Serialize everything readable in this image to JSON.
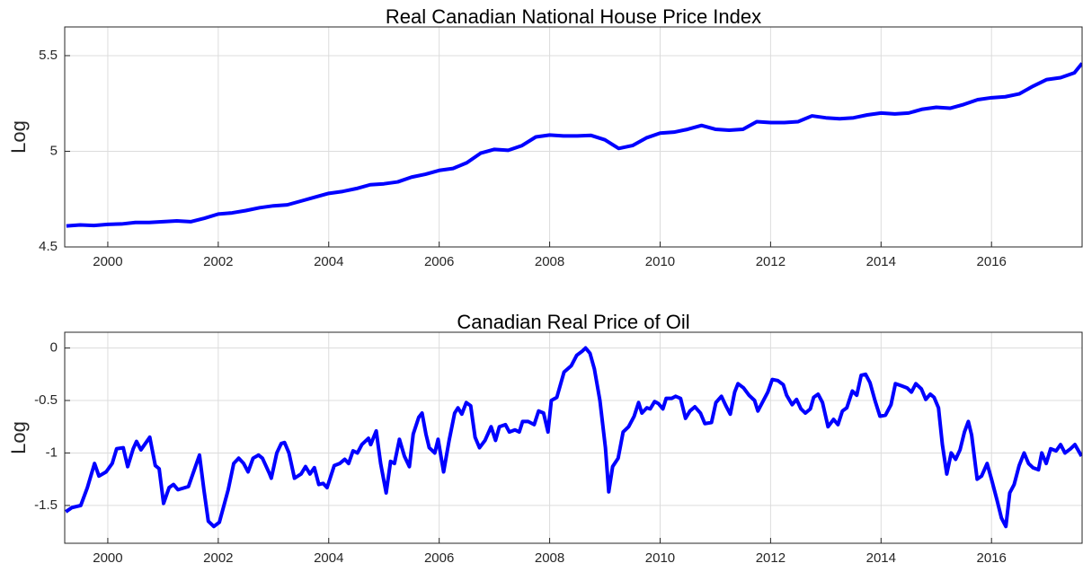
{
  "chart_data": [
    {
      "type": "line",
      "title": "Real Canadian National House Price Index",
      "ylabel": "Log",
      "color": "#0000ff",
      "grid": true,
      "xlim": [
        1999.22,
        2017.64
      ],
      "xticks": [
        2000,
        2002,
        2004,
        2006,
        2008,
        2010,
        2012,
        2014,
        2016
      ],
      "ylim": [
        4.5,
        5.65
      ],
      "yticks": [
        4.5,
        5,
        5.5
      ],
      "x": [
        1999.25,
        1999.5,
        1999.75,
        2000,
        2000.25,
        2000.5,
        2000.75,
        2001,
        2001.25,
        2001.5,
        2001.75,
        2002,
        2002.25,
        2002.5,
        2002.75,
        2003,
        2003.25,
        2003.5,
        2003.75,
        2004,
        2004.25,
        2004.5,
        2004.75,
        2005,
        2005.25,
        2005.5,
        2005.75,
        2006,
        2006.25,
        2006.5,
        2006.75,
        2007,
        2007.25,
        2007.5,
        2007.75,
        2008,
        2008.25,
        2008.5,
        2008.75,
        2009,
        2009.25,
        2009.5,
        2009.75,
        2010,
        2010.25,
        2010.5,
        2010.75,
        2011,
        2011.25,
        2011.5,
        2011.75,
        2012,
        2012.25,
        2012.5,
        2012.75,
        2013,
        2013.25,
        2013.5,
        2013.75,
        2014,
        2014.25,
        2014.5,
        2014.75,
        2015,
        2015.25,
        2015.5,
        2015.75,
        2016,
        2016.25,
        2016.5,
        2016.75,
        2017,
        2017.25,
        2017.5,
        2017.64
      ],
      "values": [
        4.61,
        4.615,
        4.612,
        4.618,
        4.62,
        4.628,
        4.628,
        4.632,
        4.636,
        4.632,
        4.65,
        4.672,
        4.678,
        4.69,
        4.705,
        4.715,
        4.72,
        4.74,
        4.76,
        4.78,
        4.79,
        4.805,
        4.825,
        4.83,
        4.84,
        4.865,
        4.88,
        4.9,
        4.91,
        4.94,
        4.99,
        5.01,
        5.005,
        5.03,
        5.075,
        5.085,
        5.08,
        5.08,
        5.083,
        5.06,
        5.015,
        5.03,
        5.07,
        5.095,
        5.1,
        5.115,
        5.135,
        5.115,
        5.11,
        5.115,
        5.155,
        5.15,
        5.15,
        5.155,
        5.185,
        5.175,
        5.17,
        5.175,
        5.19,
        5.2,
        5.195,
        5.2,
        5.22,
        5.23,
        5.225,
        5.245,
        5.27,
        5.28,
        5.285,
        5.3,
        5.34,
        5.375,
        5.385,
        5.41,
        5.46
      ]
    },
    {
      "type": "line",
      "title": "Canadian Real Price of Oil",
      "ylabel": "Log",
      "color": "#0000ff",
      "grid": true,
      "xlim": [
        1999.22,
        2017.64
      ],
      "xticks": [
        2000,
        2002,
        2004,
        2006,
        2008,
        2010,
        2012,
        2014,
        2016
      ],
      "ylim": [
        -1.86,
        0.15
      ],
      "yticks": [
        -1.5,
        -1,
        -0.5,
        0
      ],
      "x": [
        1999.24,
        1999.35,
        1999.51,
        1999.63,
        1999.76,
        1999.84,
        1999.97,
        2000.08,
        2000.16,
        2000.28,
        2000.36,
        2000.46,
        2000.52,
        2000.6,
        2000.76,
        2000.86,
        2000.93,
        2001.01,
        2001.11,
        2001.19,
        2001.27,
        2001.46,
        2001.54,
        2001.66,
        2001.74,
        2001.82,
        2001.92,
        2002.02,
        2002.18,
        2002.28,
        2002.37,
        2002.46,
        2002.54,
        2002.63,
        2002.73,
        2002.8,
        2002.93,
        2002.96,
        2003.06,
        2003.14,
        2003.2,
        2003.28,
        2003.38,
        2003.5,
        2003.58,
        2003.66,
        2003.74,
        2003.82,
        2003.9,
        2003.97,
        2004.1,
        2004.2,
        2004.29,
        2004.36,
        2004.44,
        2004.52,
        2004.6,
        2004.72,
        2004.76,
        2004.86,
        2004.94,
        2005.04,
        2005.12,
        2005.19,
        2005.28,
        2005.37,
        2005.46,
        2005.53,
        2005.63,
        2005.69,
        2005.76,
        2005.82,
        2005.92,
        2005.98,
        2006.08,
        2006.18,
        2006.28,
        2006.34,
        2006.41,
        2006.49,
        2006.57,
        2006.65,
        2006.73,
        2006.83,
        2006.94,
        2007.02,
        2007.09,
        2007.2,
        2007.27,
        2007.37,
        2007.45,
        2007.51,
        2007.61,
        2007.72,
        2007.8,
        2007.89,
        2007.97,
        2008.03,
        2008.13,
        2008.26,
        2008.39,
        2008.49,
        2008.59,
        2008.65,
        2008.73,
        2008.81,
        2008.91,
        2009.01,
        2009.07,
        2009.14,
        2009.24,
        2009.33,
        2009.43,
        2009.53,
        2009.61,
        2009.67,
        2009.76,
        2009.82,
        2009.9,
        2009.97,
        2010.05,
        2010.11,
        2010.21,
        2010.28,
        2010.37,
        2010.46,
        2010.54,
        2010.63,
        2010.73,
        2010.81,
        2010.93,
        2011.01,
        2011.11,
        2011.19,
        2011.27,
        2011.35,
        2011.41,
        2011.51,
        2011.61,
        2011.71,
        2011.77,
        2011.87,
        2011.95,
        2012.03,
        2012.13,
        2012.23,
        2012.29,
        2012.39,
        2012.47,
        2012.55,
        2012.63,
        2012.72,
        2012.78,
        2012.86,
        2012.94,
        2013.04,
        2013.14,
        2013.22,
        2013.3,
        2013.38,
        2013.48,
        2013.56,
        2013.64,
        2013.72,
        2013.8,
        2013.89,
        2013.98,
        2014.08,
        2014.18,
        2014.26,
        2014.37,
        2014.47,
        2014.55,
        2014.63,
        2014.73,
        2014.81,
        2014.89,
        2014.96,
        2015.04,
        2015.11,
        2015.19,
        2015.27,
        2015.35,
        2015.43,
        2015.51,
        2015.58,
        2015.64,
        2015.74,
        2015.82,
        2015.92,
        2016,
        2016.1,
        2016.18,
        2016.26,
        2016.33,
        2016.41,
        2016.5,
        2016.59,
        2016.67,
        2016.75,
        2016.85,
        2016.91,
        2016.99,
        2017.07,
        2017.17,
        2017.25,
        2017.33,
        2017.43,
        2017.51,
        2017.63
      ],
      "values": [
        -1.56,
        -1.52,
        -1.5,
        -1.33,
        -1.1,
        -1.22,
        -1.18,
        -1.1,
        -0.96,
        -0.95,
        -1.13,
        -0.96,
        -0.89,
        -0.97,
        -0.85,
        -1.12,
        -1.15,
        -1.48,
        -1.33,
        -1.3,
        -1.35,
        -1.32,
        -1.2,
        -1.02,
        -1.35,
        -1.65,
        -1.7,
        -1.66,
        -1.35,
        -1.1,
        -1.05,
        -1.1,
        -1.18,
        -1.05,
        -1.02,
        -1.05,
        -1.2,
        -1.24,
        -1.0,
        -0.91,
        -0.9,
        -1.0,
        -1.24,
        -1.2,
        -1.13,
        -1.2,
        -1.14,
        -1.3,
        -1.29,
        -1.33,
        -1.12,
        -1.1,
        -1.06,
        -1.1,
        -0.98,
        -1.0,
        -0.92,
        -0.86,
        -0.92,
        -0.79,
        -1.1,
        -1.38,
        -1.08,
        -1.1,
        -0.87,
        -1.03,
        -1.13,
        -0.82,
        -0.66,
        -0.62,
        -0.82,
        -0.95,
        -1.0,
        -0.87,
        -1.18,
        -0.88,
        -0.62,
        -0.57,
        -0.63,
        -0.52,
        -0.55,
        -0.85,
        -0.95,
        -0.88,
        -0.75,
        -0.88,
        -0.75,
        -0.73,
        -0.8,
        -0.78,
        -0.8,
        -0.7,
        -0.7,
        -0.73,
        -0.6,
        -0.62,
        -0.8,
        -0.5,
        -0.47,
        -0.23,
        -0.17,
        -0.07,
        -0.03,
        0.0,
        -0.05,
        -0.2,
        -0.5,
        -0.95,
        -1.37,
        -1.13,
        -1.05,
        -0.8,
        -0.75,
        -0.65,
        -0.52,
        -0.62,
        -0.57,
        -0.58,
        -0.51,
        -0.53,
        -0.58,
        -0.48,
        -0.48,
        -0.46,
        -0.48,
        -0.67,
        -0.6,
        -0.56,
        -0.62,
        -0.72,
        -0.71,
        -0.52,
        -0.46,
        -0.55,
        -0.63,
        -0.42,
        -0.34,
        -0.38,
        -0.45,
        -0.5,
        -0.6,
        -0.5,
        -0.42,
        -0.3,
        -0.31,
        -0.35,
        -0.45,
        -0.54,
        -0.49,
        -0.58,
        -0.62,
        -0.58,
        -0.47,
        -0.44,
        -0.52,
        -0.75,
        -0.68,
        -0.73,
        -0.6,
        -0.57,
        -0.41,
        -0.45,
        -0.26,
        -0.25,
        -0.33,
        -0.5,
        -0.65,
        -0.64,
        -0.54,
        -0.34,
        -0.36,
        -0.38,
        -0.42,
        -0.34,
        -0.39,
        -0.49,
        -0.44,
        -0.47,
        -0.57,
        -0.92,
        -1.2,
        -1.0,
        -1.06,
        -0.97,
        -0.8,
        -0.7,
        -0.83,
        -1.25,
        -1.22,
        -1.1,
        -1.25,
        -1.45,
        -1.62,
        -1.7,
        -1.38,
        -1.3,
        -1.12,
        -1.0,
        -1.1,
        -1.14,
        -1.16,
        -1.0,
        -1.1,
        -0.96,
        -0.98,
        -0.92,
        -1.0,
        -0.96,
        -0.92,
        -1.03
      ]
    }
  ]
}
